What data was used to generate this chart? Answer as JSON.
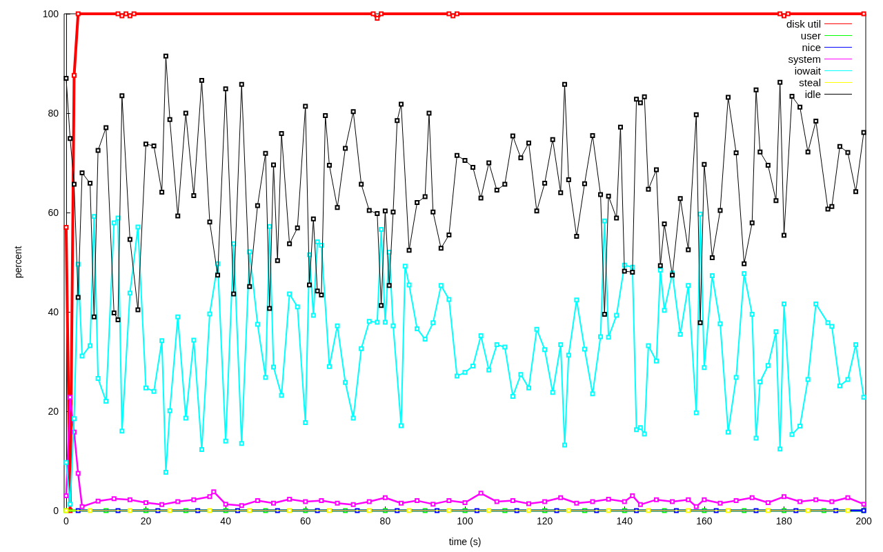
{
  "chart_data": {
    "type": "line",
    "xlabel": "time (s)",
    "ylabel": "percent",
    "xlim": [
      -0.5,
      200.5
    ],
    "xticks": [
      0,
      20,
      40,
      60,
      80,
      100,
      120,
      140,
      160,
      180,
      200
    ],
    "ylim": [
      0,
      100
    ],
    "yticks": [
      0,
      20,
      40,
      60,
      80,
      100
    ],
    "grid": false,
    "legend": "top right",
    "marker": "square",
    "line_style": "solid",
    "series": [
      {
        "name": "disk util",
        "color": "#ff0000",
        "x": [
          0,
          1,
          2,
          3,
          13,
          14,
          15,
          16,
          17,
          77,
          78,
          79,
          96,
          97,
          98,
          179,
          180,
          181,
          200
        ],
        "values": [
          57,
          0,
          87.6,
          100,
          100,
          99.6,
          100,
          99.6,
          100,
          100,
          99.1,
          100,
          100,
          99.6,
          100,
          100,
          99.6,
          100,
          100
        ]
      },
      {
        "name": "user",
        "color": "#00ff00",
        "x": [
          0,
          10,
          20,
          30,
          40,
          50,
          60,
          70,
          80,
          90,
          100,
          110,
          120,
          130,
          140,
          150,
          160,
          170,
          180,
          190,
          200
        ],
        "values": [
          0,
          0,
          0,
          0,
          0,
          0,
          0,
          0,
          0,
          0,
          0,
          0,
          0,
          0,
          0,
          0,
          0,
          0,
          0,
          0,
          0
        ]
      },
      {
        "name": "nice",
        "color": "#0000ff",
        "x": [
          3,
          13,
          23,
          33,
          43,
          53,
          63,
          73,
          83,
          93,
          103,
          113,
          123,
          133,
          143,
          153,
          163,
          173,
          183,
          193,
          200
        ],
        "values": [
          0,
          0,
          0,
          0,
          0,
          0,
          0,
          0,
          0,
          0,
          0,
          0,
          0,
          0,
          0,
          0,
          0,
          0,
          0,
          0,
          0
        ]
      },
      {
        "name": "system",
        "color": "#ff00ff",
        "x": [
          0,
          1,
          2,
          3,
          4,
          8,
          12,
          16,
          20,
          24,
          28,
          32,
          36,
          37,
          40,
          44,
          48,
          52,
          56,
          60,
          64,
          68,
          72,
          76,
          80,
          84,
          88,
          92,
          96,
          100,
          104,
          108,
          112,
          116,
          120,
          124,
          128,
          132,
          136,
          140,
          142,
          144,
          148,
          152,
          156,
          158,
          160,
          164,
          168,
          172,
          176,
          180,
          184,
          188,
          192,
          196,
          200
        ],
        "values": [
          3,
          22.8,
          15.8,
          7.5,
          0.8,
          1.9,
          2.4,
          2.2,
          1.6,
          1.2,
          1.8,
          2.2,
          2.8,
          3.8,
          1.3,
          1,
          2,
          1.5,
          2.3,
          1.8,
          2,
          1.5,
          1.2,
          1.8,
          2.6,
          1.5,
          2,
          1.3,
          2,
          1.6,
          3.5,
          1.8,
          2,
          1.4,
          1.8,
          2.6,
          1.5,
          1.8,
          2.3,
          1.8,
          3,
          1.2,
          2.2,
          1.8,
          2.2,
          0.8,
          2.2,
          1.5,
          2,
          2.6,
          1.6,
          2.8,
          1.8,
          2.2,
          1.8,
          2.6,
          1.3
        ]
      },
      {
        "name": "iowait",
        "color": "#00ffff",
        "x": [
          0,
          1,
          2,
          3,
          4,
          6,
          7,
          8,
          10,
          12,
          13,
          14,
          16,
          18,
          20,
          22,
          24,
          25,
          26,
          28,
          30,
          32,
          34,
          36,
          38,
          40,
          42,
          44,
          46,
          48,
          50,
          51,
          52,
          54,
          56,
          58,
          60,
          61,
          62,
          63,
          64,
          66,
          68,
          70,
          72,
          74,
          76,
          78,
          79,
          80,
          81,
          82,
          84,
          85,
          86,
          88,
          90,
          92,
          94,
          96,
          98,
          100,
          102,
          104,
          106,
          108,
          110,
          112,
          114,
          116,
          118,
          120,
          122,
          124,
          125,
          126,
          128,
          130,
          132,
          134,
          135,
          136,
          138,
          140,
          142,
          143,
          144,
          145,
          146,
          148,
          149,
          150,
          152,
          154,
          156,
          158,
          159,
          160,
          162,
          164,
          166,
          168,
          170,
          172,
          173,
          174,
          176,
          178,
          179,
          180,
          182,
          184,
          186,
          188,
          191,
          192,
          194,
          196,
          198,
          200
        ],
        "values": [
          9.7,
          1.3,
          18.5,
          49.6,
          31.1,
          33.2,
          59.2,
          26.6,
          22,
          57.9,
          58.9,
          16,
          43.8,
          57.1,
          24.7,
          24,
          34.2,
          7.7,
          20.1,
          39,
          18.6,
          34.3,
          12.3,
          39.6,
          49.7,
          14,
          53.7,
          13.5,
          52.1,
          37.5,
          26.8,
          57.2,
          28.9,
          23.2,
          43.6,
          41,
          17.7,
          51.5,
          39.3,
          54.1,
          53.4,
          29,
          37.2,
          25.8,
          18.6,
          32.6,
          38.1,
          37.9,
          56.6,
          37.9,
          52,
          37.2,
          17.1,
          49.2,
          45.4,
          36.6,
          34.5,
          37.8,
          45.3,
          42.5,
          27.1,
          27.8,
          29.1,
          35.2,
          28.3,
          33.4,
          32.9,
          23,
          27.4,
          24.7,
          36.5,
          32.4,
          23.8,
          33.4,
          13.2,
          31.3,
          42.4,
          32.5,
          23.5,
          35,
          58.3,
          34.9,
          39.3,
          49.4,
          49,
          16.3,
          16.7,
          15.4,
          33.2,
          30.1,
          48.4,
          40.3,
          47.8,
          35.5,
          45.3,
          19.7,
          59.7,
          28.8,
          47.3,
          37.6,
          15.8,
          26.8,
          47.7,
          39.5,
          14.6,
          25.9,
          29.2,
          36,
          12.4,
          41.6,
          15.3,
          17,
          26.4,
          41.6,
          37.8,
          37.1,
          25.1,
          26.4,
          33.4,
          22.8
        ]
      },
      {
        "name": "steal",
        "color": "#ffff00",
        "x": [
          0,
          6,
          16,
          26,
          36,
          46,
          56,
          66,
          76,
          86,
          96,
          106,
          116,
          126,
          136,
          146,
          156,
          166,
          176,
          186,
          196
        ],
        "values": [
          0,
          0,
          0,
          0,
          0,
          0,
          0,
          0,
          0,
          0,
          0,
          0,
          0,
          0,
          0,
          0,
          0,
          0,
          0,
          0,
          0
        ]
      },
      {
        "name": "idle",
        "color": "#000000",
        "x": [
          0,
          1,
          2,
          3,
          4,
          6,
          7,
          8,
          10,
          12,
          13,
          14,
          16,
          18,
          20,
          22,
          24,
          25,
          26,
          28,
          30,
          32,
          34,
          36,
          38,
          40,
          42,
          44,
          46,
          48,
          50,
          51,
          52,
          53,
          54,
          56,
          58,
          60,
          61,
          62,
          63,
          64,
          65,
          66,
          68,
          70,
          72,
          74,
          76,
          78,
          79,
          80,
          81,
          82,
          83,
          84,
          86,
          88,
          90,
          91,
          92,
          94,
          96,
          98,
          100,
          102,
          104,
          106,
          108,
          110,
          112,
          114,
          116,
          118,
          120,
          122,
          124,
          125,
          126,
          128,
          130,
          132,
          134,
          135,
          136,
          138,
          139,
          140,
          142,
          143,
          144,
          145,
          146,
          148,
          149,
          150,
          152,
          154,
          156,
          158,
          159,
          160,
          162,
          164,
          166,
          168,
          170,
          172,
          173,
          174,
          176,
          178,
          179,
          180,
          182,
          184,
          186,
          188,
          191,
          192,
          194,
          196,
          198,
          200
        ],
        "values": [
          87,
          74.9,
          65.7,
          42.9,
          68,
          65.9,
          39,
          72.5,
          77.1,
          39.8,
          38.4,
          83.5,
          54.6,
          40.4,
          73.8,
          73.4,
          64.1,
          91.5,
          78.7,
          59.3,
          80,
          63.4,
          86.6,
          58.1,
          47.4,
          84.9,
          43.6,
          85.8,
          45.1,
          61.4,
          71.9,
          40.7,
          69.6,
          50.3,
          75.9,
          53.7,
          56.9,
          81.4,
          45.4,
          58.7,
          44.2,
          43.4,
          79.5,
          69.5,
          61,
          72.9,
          80.3,
          65.7,
          60.4,
          59.8,
          41.3,
          60.3,
          45.3,
          60.1,
          78.5,
          81.8,
          52.4,
          62,
          63.2,
          80,
          60.1,
          52.8,
          55.5,
          71.5,
          70.5,
          69.1,
          62.9,
          70,
          64.5,
          65.7,
          75.4,
          71,
          74,
          60.3,
          65.9,
          74.7,
          64,
          85.8,
          66.6,
          55.2,
          65.8,
          75.5,
          63.6,
          39.5,
          63.3,
          58.9,
          77.2,
          48.2,
          48,
          82.8,
          82.1,
          83.3,
          64.7,
          68.6,
          49.3,
          57.7,
          47.4,
          62.8,
          52.5,
          79.7,
          37.8,
          69.7,
          50.9,
          60.4,
          83.2,
          72,
          49.7,
          57.9,
          84.7,
          72.2,
          69.5,
          62.4,
          86.2,
          55.4,
          83.4,
          81.2,
          72.2,
          78.4,
          60.7,
          61.2,
          73.3,
          72.1,
          64.2,
          76.1
        ]
      }
    ]
  }
}
